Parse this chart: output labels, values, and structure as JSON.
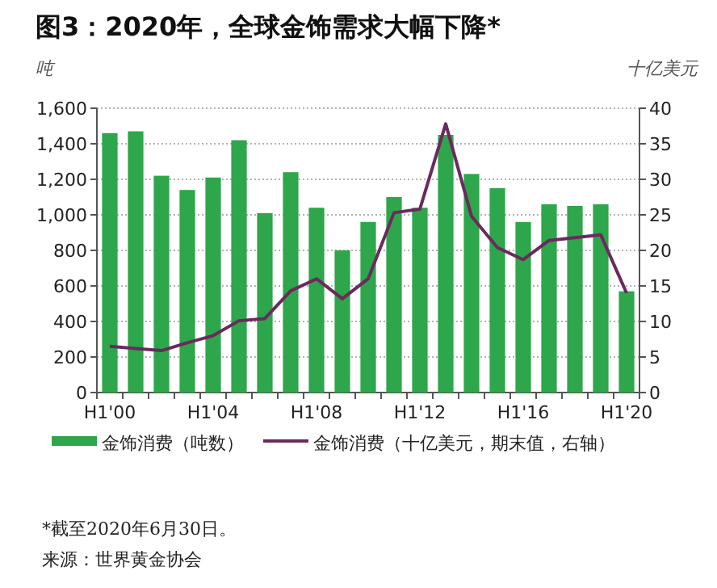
{
  "chart_data": {
    "type": "bar",
    "title": "图3：2020年，全球金饰需求大幅下降*",
    "categories": [
      "H1'00",
      null,
      null,
      null,
      "H1'04",
      null,
      null,
      null,
      "H1'08",
      null,
      null,
      null,
      "H1'12",
      null,
      null,
      null,
      "H1'16",
      null,
      null,
      null,
      "H1'20"
    ],
    "series": [
      {
        "name": "金饰消费（吨数）",
        "color": "#2ea64b",
        "values": [
          1460,
          1470,
          1220,
          1140,
          1210,
          1420,
          1010,
          1240,
          1040,
          800,
          960,
          1100,
          1040,
          1450,
          1230,
          1150,
          960,
          1060,
          1050,
          1060,
          570
        ]
      },
      {
        "name": "金饰消费（十亿美元，期末值，右轴）",
        "type": "line",
        "axis": "y2",
        "color": "#6b2a5e",
        "values": [
          6.5,
          6.2,
          5.9,
          7,
          8,
          10.1,
          10.4,
          14.3,
          16,
          13.2,
          16,
          25.3,
          25.8,
          37.8,
          24.8,
          20.4,
          18.7,
          21.4,
          21.8,
          22.2,
          14
        ]
      }
    ],
    "ylabel": "吨",
    "y2label": "十亿美元",
    "ylim": [
      0,
      1600
    ],
    "yticks": [
      0,
      {
        "value": 200,
        "label": "200"
      },
      {
        "value": 400,
        "label": "400"
      },
      {
        "value": 600,
        "label": "600"
      },
      {
        "value": 800,
        "label": "800"
      },
      {
        "value": 1000,
        "label": "1,000"
      },
      {
        "value": 1200,
        "label": "1,200"
      },
      {
        "value": 1400,
        "label": "1,400"
      },
      {
        "value": 1600,
        "label": "1,600"
      }
    ],
    "y2lim": [
      0,
      40
    ],
    "y2ticks": [
      0,
      5,
      10,
      15,
      20,
      25,
      30,
      35,
      40
    ],
    "grid": "y",
    "legend": "bottom",
    "annotations": [
      "*截至2020年6月30日。",
      "来源：世界黄金协会"
    ]
  }
}
